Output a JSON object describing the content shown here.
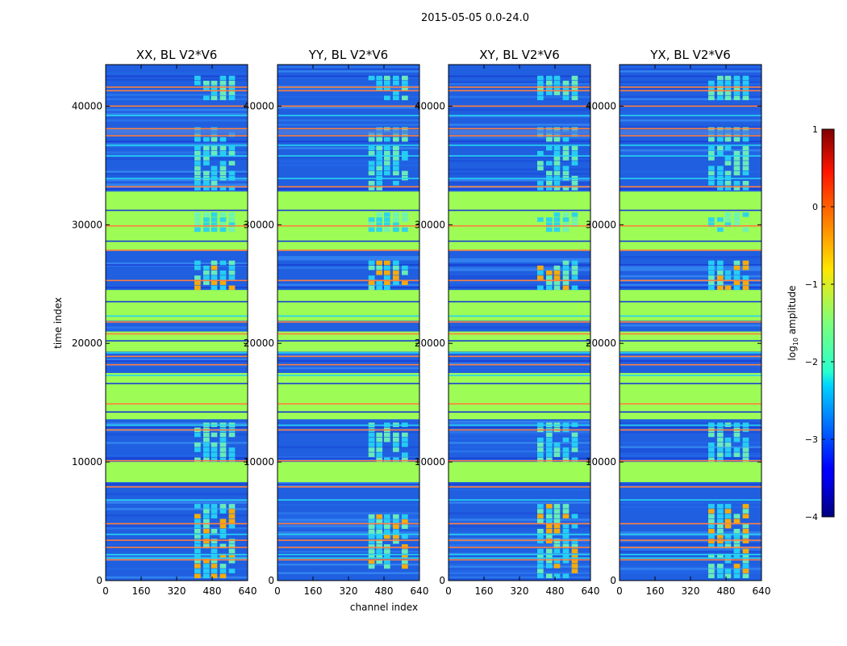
{
  "chart_data": {
    "type": "heatmap",
    "suptitle": "2015-05-05 0.0-24.0",
    "xlabel": "channel index",
    "ylabel": "time index",
    "xlim": [
      0,
      640
    ],
    "ylim": [
      0,
      43500
    ],
    "xticks": [
      0,
      160,
      320,
      480,
      640
    ],
    "yticks": [
      0,
      10000,
      20000,
      30000,
      40000
    ],
    "colormap": "jet",
    "panels": [
      {
        "title": "XX, BL V2*V6",
        "bursts": "strong"
      },
      {
        "title": "YY, BL V2*V6",
        "bursts": "medium"
      },
      {
        "title": "XY, BL V2*V6",
        "bursts": "strong"
      },
      {
        "title": "YX, BL V2*V6",
        "bursts": "strong"
      }
    ],
    "flagged_time_ranges": [
      [
        8300,
        10000
      ],
      [
        13600,
        17500
      ],
      [
        19300,
        21000
      ],
      [
        21900,
        24500
      ],
      [
        27800,
        32800
      ]
    ],
    "rfi_channel_range": [
      380,
      600
    ],
    "colorbar": {
      "label": "log10 amplitude",
      "label_base": "log",
      "label_sub": "10",
      "label_rest": " amplitude",
      "range": [
        -4,
        1
      ],
      "ticks": [
        1,
        0,
        -1,
        -2,
        -3,
        -4
      ],
      "tick_labels": [
        "1",
        "0",
        "−1",
        "−2",
        "−3",
        "−4"
      ]
    },
    "colors": {
      "background": "#1f5fe0",
      "flagged": "#9dfc55",
      "band_line": "#ff7f3f",
      "cyan": "#27d3f2",
      "burst": "#6df2b6"
    }
  }
}
